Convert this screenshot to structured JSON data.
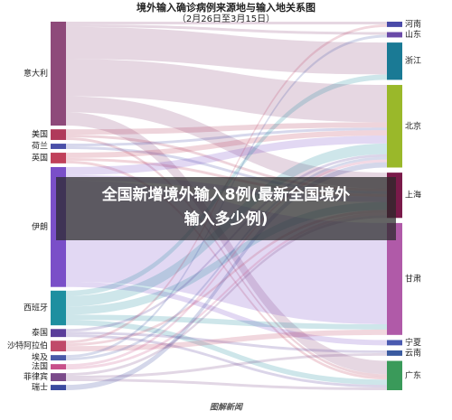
{
  "chart_data": {
    "type": "sankey",
    "title": "境外输入确诊病例来源地与输入地关系图",
    "subtitle": "（2月26日至3月15日）",
    "sources": [
      {
        "name": "意大利",
        "value": 39,
        "color": "#8e4a7a"
      },
      {
        "name": "美国",
        "value": 4,
        "color": "#b03a5b"
      },
      {
        "name": "荷兰",
        "value": 2,
        "color": "#4a4fa8"
      },
      {
        "name": "英国",
        "value": 4,
        "color": "#c0405a"
      },
      {
        "name": "伊朗",
        "value": 45,
        "color": "#7a4fc8"
      },
      {
        "name": "西班牙",
        "value": 13,
        "color": "#1e8fa0"
      },
      {
        "name": "泰国",
        "value": 3,
        "color": "#5a3e9a"
      },
      {
        "name": "沙特阿拉伯",
        "value": 4,
        "color": "#c04a6a"
      },
      {
        "name": "埃及",
        "value": 2,
        "color": "#4a5aa8"
      },
      {
        "name": "法国",
        "value": 2,
        "color": "#c8508a"
      },
      {
        "name": "菲律宾",
        "value": 3,
        "color": "#7a4a8a"
      },
      {
        "name": "瑞士",
        "value": 2,
        "color": "#3a4aa0"
      }
    ],
    "targets": [
      {
        "name": "河南",
        "value": 2,
        "color": "#4a4aa8"
      },
      {
        "name": "山东",
        "value": 2,
        "color": "#6a4aa8"
      },
      {
        "name": "浙江",
        "value": 14,
        "color": "#1a7a95"
      },
      {
        "name": "北京",
        "value": 31,
        "color": "#9ab82a"
      },
      {
        "name": "上海",
        "value": 17,
        "color": "#7a1a4a"
      },
      {
        "name": "甘肃",
        "value": 42,
        "color": "#b05aa8"
      },
      {
        "name": "宁夏",
        "value": 2,
        "color": "#4a5ab0"
      },
      {
        "name": "云南",
        "value": 2,
        "color": "#3a5aa0"
      },
      {
        "name": "广东",
        "value": 11,
        "color": "#3a9a5a"
      }
    ],
    "links": [
      {
        "source": 0,
        "target": 0,
        "value": 1
      },
      {
        "source": 0,
        "target": 1,
        "value": 1
      },
      {
        "source": 0,
        "target": 2,
        "value": 12
      },
      {
        "source": 0,
        "target": 3,
        "value": 14
      },
      {
        "source": 0,
        "target": 4,
        "value": 6
      },
      {
        "source": 0,
        "target": 8,
        "value": 5
      },
      {
        "source": 1,
        "target": 3,
        "value": 2
      },
      {
        "source": 1,
        "target": 4,
        "value": 1
      },
      {
        "source": 1,
        "target": 8,
        "value": 1
      },
      {
        "source": 2,
        "target": 3,
        "value": 1
      },
      {
        "source": 2,
        "target": 4,
        "value": 1
      },
      {
        "source": 3,
        "target": 3,
        "value": 2
      },
      {
        "source": 3,
        "target": 4,
        "value": 1
      },
      {
        "source": 3,
        "target": 8,
        "value": 1
      },
      {
        "source": 4,
        "target": 3,
        "value": 3
      },
      {
        "source": 4,
        "target": 4,
        "value": 2
      },
      {
        "source": 4,
        "target": 5,
        "value": 38
      },
      {
        "source": 4,
        "target": 6,
        "value": 2
      },
      {
        "source": 5,
        "target": 2,
        "value": 2
      },
      {
        "source": 5,
        "target": 3,
        "value": 4
      },
      {
        "source": 5,
        "target": 4,
        "value": 3
      },
      {
        "source": 5,
        "target": 5,
        "value": 2
      },
      {
        "source": 5,
        "target": 8,
        "value": 2
      },
      {
        "source": 6,
        "target": 3,
        "value": 1
      },
      {
        "source": 6,
        "target": 7,
        "value": 1
      },
      {
        "source": 6,
        "target": 8,
        "value": 1
      },
      {
        "source": 7,
        "target": 0,
        "value": 1
      },
      {
        "source": 7,
        "target": 4,
        "value": 1
      },
      {
        "source": 7,
        "target": 5,
        "value": 2
      },
      {
        "source": 8,
        "target": 1,
        "value": 1
      },
      {
        "source": 8,
        "target": 3,
        "value": 1
      },
      {
        "source": 9,
        "target": 3,
        "value": 1
      },
      {
        "source": 9,
        "target": 4,
        "value": 1
      },
      {
        "source": 10,
        "target": 4,
        "value": 1
      },
      {
        "source": 10,
        "target": 7,
        "value": 1
      },
      {
        "source": 10,
        "target": 8,
        "value": 1
      },
      {
        "source": 11,
        "target": 3,
        "value": 2
      }
    ],
    "overlay": [
      "全国新增境外输入8例(最新全国境外",
      "输入多少例)"
    ],
    "watermark": "图解新闻"
  }
}
